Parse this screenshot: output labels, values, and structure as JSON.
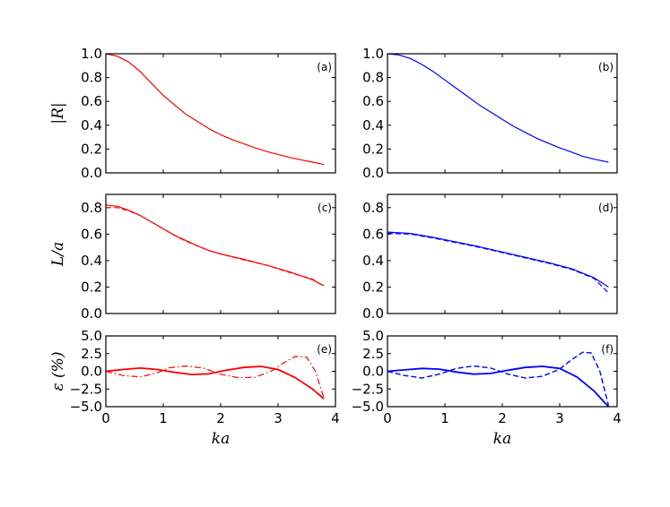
{
  "figure": {
    "shared_xlabel": "ka",
    "row_ylabels": [
      "|R|",
      "L/a",
      "ε (%)"
    ]
  },
  "chart_data": [
    {
      "type": "line",
      "panel_label": "(a)",
      "color": "#ff0000",
      "xlabel": "",
      "ylabel": "|R|",
      "xlim": [
        0,
        4
      ],
      "ylim": [
        0.0,
        1.0
      ],
      "xticks": [
        0,
        1,
        2,
        3,
        4
      ],
      "xtick_labels": [],
      "yticks": [
        0.0,
        0.2,
        0.4,
        0.6,
        0.8,
        1.0
      ],
      "ytick_labels": [
        "0.0",
        "0.2",
        "0.4",
        "0.6",
        "0.8",
        "1.0"
      ],
      "series": [
        {
          "style": "solid",
          "width": 1.2,
          "x": [
            0,
            0.2,
            0.4,
            0.6,
            0.8,
            1.0,
            1.2,
            1.4,
            1.6,
            1.8,
            2.0,
            2.2,
            2.4,
            2.6,
            2.8,
            3.0,
            3.2,
            3.4,
            3.6,
            3.8
          ],
          "y": [
            1.0,
            0.98,
            0.93,
            0.85,
            0.75,
            0.65,
            0.57,
            0.49,
            0.43,
            0.37,
            0.32,
            0.28,
            0.245,
            0.21,
            0.18,
            0.155,
            0.13,
            0.11,
            0.09,
            0.07
          ]
        }
      ]
    },
    {
      "type": "line",
      "panel_label": "(b)",
      "color": "#0000ff",
      "xlabel": "",
      "ylabel": "",
      "xlim": [
        0,
        4
      ],
      "ylim": [
        0.0,
        1.0
      ],
      "xticks": [
        0,
        1,
        2,
        3,
        4
      ],
      "xtick_labels": [],
      "yticks": [
        0.0,
        0.2,
        0.4,
        0.6,
        0.8,
        1.0
      ],
      "ytick_labels": [
        "0.0",
        "0.2",
        "0.4",
        "0.6",
        "0.8",
        "1.0"
      ],
      "series": [
        {
          "style": "solid",
          "width": 1.2,
          "x": [
            0,
            0.2,
            0.4,
            0.6,
            0.8,
            1.0,
            1.2,
            1.4,
            1.6,
            1.8,
            2.0,
            2.2,
            2.4,
            2.6,
            2.8,
            3.0,
            3.2,
            3.4,
            3.6,
            3.85
          ],
          "y": [
            1.0,
            0.99,
            0.96,
            0.91,
            0.85,
            0.78,
            0.71,
            0.64,
            0.57,
            0.51,
            0.45,
            0.39,
            0.34,
            0.29,
            0.25,
            0.21,
            0.175,
            0.14,
            0.115,
            0.09
          ]
        }
      ]
    },
    {
      "type": "line",
      "panel_label": "(c)",
      "color": "#ff0000",
      "xlabel": "",
      "ylabel": "L/a",
      "xlim": [
        0,
        4
      ],
      "ylim": [
        0.0,
        0.9
      ],
      "xticks": [
        0,
        1,
        2,
        3,
        4
      ],
      "xtick_labels": [],
      "yticks": [
        0.0,
        0.2,
        0.4,
        0.6,
        0.8
      ],
      "ytick_labels": [
        "0.0",
        "0.2",
        "0.4",
        "0.6",
        "0.8"
      ],
      "series": [
        {
          "style": "solid",
          "width": 1.2,
          "x": [
            0,
            0.2,
            0.4,
            0.6,
            0.8,
            1.0,
            1.2,
            1.4,
            1.6,
            1.8,
            2.0,
            2.4,
            2.8,
            3.2,
            3.6,
            3.8
          ],
          "y": [
            0.82,
            0.81,
            0.78,
            0.74,
            0.69,
            0.64,
            0.59,
            0.55,
            0.51,
            0.475,
            0.45,
            0.41,
            0.365,
            0.315,
            0.255,
            0.21
          ]
        },
        {
          "style": "dashed",
          "width": 1.2,
          "x": [
            0,
            0.2,
            0.4,
            0.6,
            0.8,
            1.0,
            1.2,
            1.4,
            1.6,
            1.8,
            2.0,
            2.4,
            2.8,
            3.2,
            3.6,
            3.8
          ],
          "y": [
            0.8,
            0.8,
            0.775,
            0.74,
            0.69,
            0.64,
            0.59,
            0.545,
            0.51,
            0.475,
            0.45,
            0.405,
            0.365,
            0.31,
            0.26,
            0.205
          ]
        }
      ]
    },
    {
      "type": "line",
      "panel_label": "(d)",
      "color": "#0000ff",
      "xlabel": "",
      "ylabel": "",
      "xlim": [
        0,
        4
      ],
      "ylim": [
        0.0,
        0.9
      ],
      "xticks": [
        0,
        1,
        2,
        3,
        4
      ],
      "xtick_labels": [],
      "yticks": [
        0.0,
        0.2,
        0.4,
        0.6,
        0.8
      ],
      "ytick_labels": [
        "0.0",
        "0.2",
        "0.4",
        "0.6",
        "0.8"
      ],
      "series": [
        {
          "style": "solid",
          "width": 1.2,
          "x": [
            0,
            0.4,
            0.8,
            1.2,
            1.6,
            2.0,
            2.4,
            2.8,
            3.2,
            3.6,
            3.85
          ],
          "y": [
            0.615,
            0.605,
            0.575,
            0.54,
            0.505,
            0.465,
            0.425,
            0.385,
            0.34,
            0.27,
            0.2
          ]
        },
        {
          "style": "dashed",
          "width": 1.2,
          "x": [
            0,
            0.4,
            0.8,
            1.2,
            1.6,
            2.0,
            2.4,
            2.8,
            3.2,
            3.6,
            3.85
          ],
          "y": [
            0.605,
            0.6,
            0.57,
            0.535,
            0.5,
            0.46,
            0.42,
            0.38,
            0.335,
            0.265,
            0.155
          ]
        }
      ]
    },
    {
      "type": "line",
      "panel_label": "(e)",
      "color": "#ff0000",
      "xlabel": "ka",
      "ylabel": "ε (%)",
      "xlim": [
        0,
        4
      ],
      "ylim": [
        -5.0,
        5.0
      ],
      "xticks": [
        0,
        1,
        2,
        3,
        4
      ],
      "xtick_labels": [
        "0",
        "1",
        "2",
        "3",
        "4"
      ],
      "yticks": [
        -5.0,
        -2.5,
        0.0,
        2.5,
        5.0
      ],
      "ytick_labels": [
        "−5.0",
        "−2.5",
        "0.0",
        "2.5",
        "5.0"
      ],
      "series": [
        {
          "style": "solid",
          "width": 1.8,
          "x": [
            0,
            0.3,
            0.6,
            0.9,
            1.2,
            1.5,
            1.8,
            2.1,
            2.4,
            2.7,
            3.0,
            3.3,
            3.6,
            3.8
          ],
          "y": [
            0.0,
            0.25,
            0.45,
            0.25,
            -0.15,
            -0.45,
            -0.35,
            0.15,
            0.55,
            0.7,
            0.25,
            -0.9,
            -2.5,
            -3.9
          ]
        },
        {
          "style": "dashdot",
          "width": 1.2,
          "x": [
            0,
            0.3,
            0.6,
            0.9,
            1.1,
            1.4,
            1.7,
            2.0,
            2.3,
            2.6,
            2.9,
            3.1,
            3.3,
            3.5,
            3.65,
            3.8
          ],
          "y": [
            0.0,
            -0.6,
            -0.8,
            -0.2,
            0.5,
            0.75,
            0.45,
            -0.4,
            -0.9,
            -0.85,
            0.1,
            1.2,
            2.1,
            2.0,
            0.0,
            -3.8
          ]
        }
      ]
    },
    {
      "type": "line",
      "panel_label": "(f)",
      "color": "#0000ff",
      "xlabel": "ka",
      "ylabel": "",
      "xlim": [
        0,
        4
      ],
      "ylim": [
        -5.0,
        5.0
      ],
      "xticks": [
        0,
        1,
        2,
        3,
        4
      ],
      "xtick_labels": [
        "0",
        "1",
        "2",
        "3",
        "4"
      ],
      "yticks": [
        -5.0,
        -2.5,
        0.0,
        2.5,
        5.0
      ],
      "ytick_labels": [
        "−5.0",
        "−2.5",
        "0.0",
        "2.5",
        "5.0"
      ],
      "series": [
        {
          "style": "solid",
          "width": 1.8,
          "x": [
            0,
            0.3,
            0.6,
            0.9,
            1.2,
            1.5,
            1.8,
            2.1,
            2.4,
            2.7,
            3.0,
            3.3,
            3.6,
            3.85
          ],
          "y": [
            0.0,
            0.2,
            0.4,
            0.3,
            -0.1,
            -0.4,
            -0.3,
            0.15,
            0.55,
            0.7,
            0.4,
            -0.8,
            -2.8,
            -5.0
          ]
        },
        {
          "style": "dashed",
          "width": 1.4,
          "x": [
            0,
            0.3,
            0.6,
            0.9,
            1.2,
            1.5,
            1.8,
            2.1,
            2.4,
            2.7,
            3.0,
            3.2,
            3.4,
            3.55,
            3.7,
            3.85
          ],
          "y": [
            0.0,
            -0.6,
            -0.95,
            -0.4,
            0.4,
            0.75,
            0.45,
            -0.4,
            -0.95,
            -0.7,
            0.3,
            1.6,
            2.7,
            2.6,
            0.0,
            -4.8
          ]
        }
      ]
    }
  ]
}
